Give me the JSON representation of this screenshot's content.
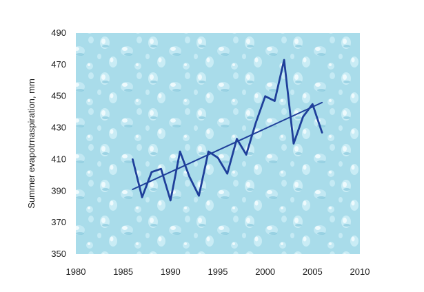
{
  "chart_data": {
    "type": "line",
    "title": "",
    "xlabel": "",
    "ylabel": "Summer evapotrnaspiration, mm",
    "xlim": [
      1980,
      2010
    ],
    "ylim": [
      350,
      490
    ],
    "xticks": [
      1980,
      1985,
      1990,
      1995,
      2000,
      2005,
      2010
    ],
    "yticks": [
      350,
      370,
      390,
      410,
      430,
      450,
      470,
      490
    ],
    "grid": false,
    "legend": "none",
    "background": "water-droplet texture",
    "colors": {
      "line": "#1f3f9a",
      "plot_bg": "#a9dcea",
      "drop_light": "#e4f6fb",
      "drop_dark": "#7fc3d8"
    },
    "series": [
      {
        "x": [
          1986,
          1987,
          1988,
          1989,
          1990,
          1991,
          1992,
          1993,
          1994,
          1995,
          1996,
          1997,
          1998,
          1999,
          2000,
          2001,
          2002,
          2003,
          2004,
          2005,
          2006
        ],
        "values": [
          410,
          386,
          402,
          404,
          384,
          415,
          399,
          387,
          415,
          411,
          401,
          423,
          413,
          433,
          450,
          447,
          473,
          420,
          437,
          445,
          427
        ]
      },
      {
        "x": [
          1986,
          2006
        ],
        "values": [
          391,
          446
        ]
      }
    ]
  }
}
